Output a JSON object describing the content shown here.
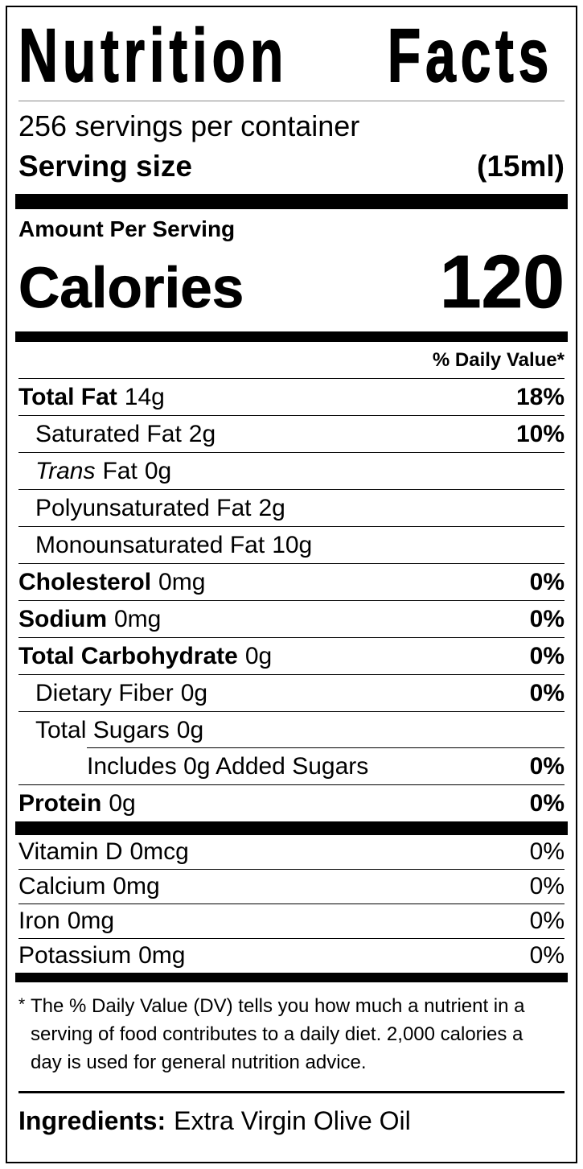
{
  "colors": {
    "background": "#ffffff",
    "text": "#000000",
    "border": "#000000"
  },
  "label": {
    "title": "Nutrition Facts",
    "servings_per_container": "256 servings per container",
    "serving_size_label": "Serving size",
    "serving_size_value": "(15ml)",
    "amount_per_serving": "Amount Per Serving",
    "calories_label": "Calories",
    "calories_value": "120",
    "daily_value_header": "% Daily Value*",
    "nutrients": [
      {
        "name": "Total Fat",
        "amount": "14g",
        "dv": "18%"
      },
      {
        "name": "Saturated Fat",
        "amount": "2g",
        "dv": "10%"
      },
      {
        "name": "Trans",
        "name2": "Fat",
        "amount": "0g",
        "dv": ""
      },
      {
        "name": "Polyunsaturated Fat",
        "amount": "2g",
        "dv": ""
      },
      {
        "name": "Monounsaturated Fat",
        "amount": "10g",
        "dv": ""
      },
      {
        "name": "Cholesterol",
        "amount": "0mg",
        "dv": "0%"
      },
      {
        "name": "Sodium",
        "amount": "0mg",
        "dv": "0%"
      },
      {
        "name": "Total Carbohydrate",
        "amount": "0g",
        "dv": "0%"
      },
      {
        "name": "Dietary Fiber",
        "amount": "0g",
        "dv": "0%"
      },
      {
        "name": "Total Sugars",
        "amount": "0g",
        "dv": ""
      },
      {
        "name": "Includes 0g Added Sugars",
        "amount": "",
        "dv": "0%"
      },
      {
        "name": "Protein",
        "amount": "0g",
        "dv": "0%"
      }
    ],
    "vitamins": [
      {
        "name": "Vitamin D",
        "amount": "0mcg",
        "dv": "0%"
      },
      {
        "name": "Calcium",
        "amount": "0mg",
        "dv": "0%"
      },
      {
        "name": "Iron",
        "amount": "0mg",
        "dv": "0%"
      },
      {
        "name": "Potassium",
        "amount": "0mg",
        "dv": "0%"
      }
    ],
    "footnote_marker": "*",
    "footnote_lines": [
      "The % Daily Value (DV) tells you how much a nutrient in a",
      "serving of food contributes to a daily diet. 2,000 calories a",
      "day is used for general nutrition advice."
    ],
    "ingredients_label": "Ingredients:",
    "ingredients_value": "Extra Virgin Olive Oil"
  }
}
